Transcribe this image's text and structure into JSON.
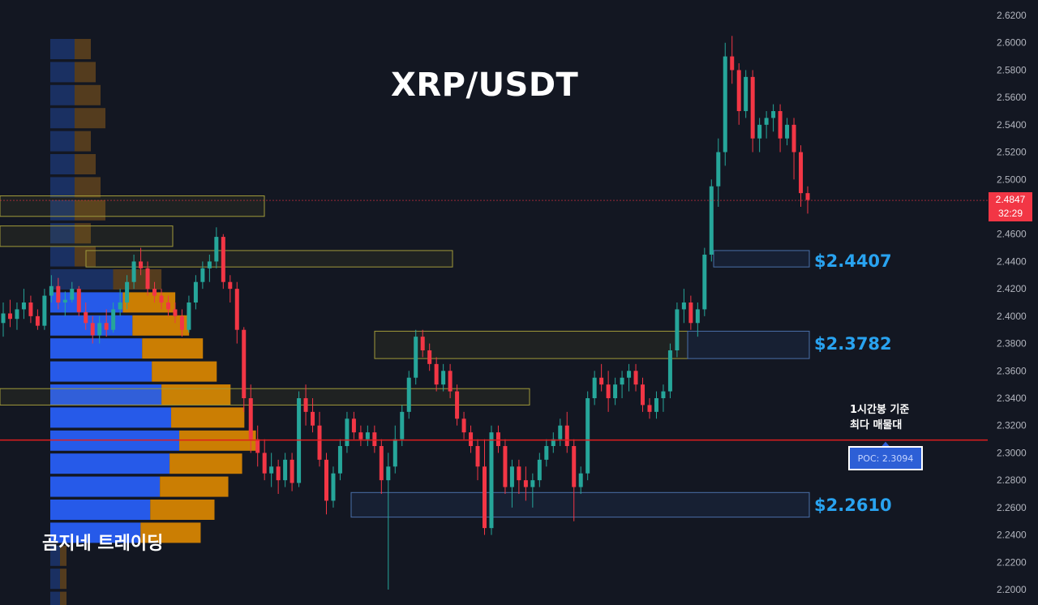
{
  "title": "XRP/USDT",
  "brand": "곰지네 트레이딩",
  "note": {
    "line1": "1시간봉 기준",
    "line2": "최다 매물대"
  },
  "poc_label": "POC: 2.3094",
  "current_price": {
    "value": "2.4847",
    "countdown": "32:29"
  },
  "levels": [
    {
      "name": "resistance-1",
      "price": 2.4407,
      "label": "$2.4407"
    },
    {
      "name": "resistance-2",
      "price": 2.3782,
      "label": "$2.3782"
    },
    {
      "name": "support-1",
      "price": 2.261,
      "label": "$2.2610"
    }
  ],
  "colors": {
    "up": "#26a69a",
    "down": "#f23645",
    "poc_line": "#e01e1e",
    "level_text": "#29a3f0"
  },
  "chart_data": {
    "type": "candlestick",
    "title": "XRP/USDT",
    "yaxis": {
      "min": 2.2,
      "max": 2.62,
      "ticks": [
        "2.2000",
        "2.2200",
        "2.2400",
        "2.2600",
        "2.2800",
        "2.3000",
        "2.3200",
        "2.3400",
        "2.3600",
        "2.3800",
        "2.4000",
        "2.4200",
        "2.4400",
        "2.4600",
        "2.4800",
        "2.5000",
        "2.5200",
        "2.5400",
        "2.5600",
        "2.5800",
        "2.6000",
        "2.6200"
      ]
    },
    "poc": 2.3094,
    "candles": [
      [
        2.395,
        2.41,
        2.385,
        2.402
      ],
      [
        2.402,
        2.412,
        2.392,
        2.398
      ],
      [
        2.398,
        2.41,
        2.39,
        2.405
      ],
      [
        2.405,
        2.42,
        2.398,
        2.41
      ],
      [
        2.41,
        2.415,
        2.395,
        2.4
      ],
      [
        2.4,
        2.405,
        2.39,
        2.393
      ],
      [
        2.393,
        2.42,
        2.39,
        2.415
      ],
      [
        2.415,
        2.43,
        2.41,
        2.422
      ],
      [
        2.422,
        2.428,
        2.405,
        2.41
      ],
      [
        2.41,
        2.418,
        2.4,
        2.412
      ],
      [
        2.412,
        2.425,
        2.41,
        2.42
      ],
      [
        2.42,
        2.422,
        2.4,
        2.403
      ],
      [
        2.403,
        2.41,
        2.39,
        2.395
      ],
      [
        2.395,
        2.4,
        2.38,
        2.386
      ],
      [
        2.386,
        2.4,
        2.38,
        2.395
      ],
      [
        2.395,
        2.405,
        2.385,
        2.39
      ],
      [
        2.39,
        2.41,
        2.388,
        2.405
      ],
      [
        2.405,
        2.42,
        2.4,
        2.41
      ],
      [
        2.41,
        2.43,
        2.405,
        2.425
      ],
      [
        2.425,
        2.445,
        2.42,
        2.44
      ],
      [
        2.44,
        2.45,
        2.43,
        2.435
      ],
      [
        2.435,
        2.44,
        2.415,
        2.42
      ],
      [
        2.42,
        2.425,
        2.41,
        2.415
      ],
      [
        2.415,
        2.42,
        2.405,
        2.41
      ],
      [
        2.41,
        2.415,
        2.4,
        2.405
      ],
      [
        2.405,
        2.41,
        2.395,
        2.4
      ],
      [
        2.4,
        2.405,
        2.385,
        2.39
      ],
      [
        2.39,
        2.415,
        2.388,
        2.41
      ],
      [
        2.41,
        2.43,
        2.405,
        2.425
      ],
      [
        2.425,
        2.44,
        2.42,
        2.435
      ],
      [
        2.435,
        2.445,
        2.425,
        2.44
      ],
      [
        2.44,
        2.465,
        2.435,
        2.458
      ],
      [
        2.458,
        2.46,
        2.42,
        2.425
      ],
      [
        2.425,
        2.43,
        2.41,
        2.42
      ],
      [
        2.42,
        2.425,
        2.38,
        2.39
      ],
      [
        2.39,
        2.392,
        2.33,
        2.34
      ],
      [
        2.34,
        2.35,
        2.3,
        2.31
      ],
      [
        2.31,
        2.32,
        2.29,
        2.3
      ],
      [
        2.3,
        2.31,
        2.28,
        2.285
      ],
      [
        2.285,
        2.3,
        2.275,
        2.29
      ],
      [
        2.29,
        2.295,
        2.27,
        2.28
      ],
      [
        2.28,
        2.3,
        2.275,
        2.295
      ],
      [
        2.295,
        2.3,
        2.272,
        2.278
      ],
      [
        2.278,
        2.345,
        2.275,
        2.34
      ],
      [
        2.34,
        2.35,
        2.32,
        2.33
      ],
      [
        2.33,
        2.34,
        2.315,
        2.32
      ],
      [
        2.32,
        2.33,
        2.29,
        2.295
      ],
      [
        2.295,
        2.3,
        2.255,
        2.265
      ],
      [
        2.265,
        2.29,
        2.26,
        2.285
      ],
      [
        2.285,
        2.31,
        2.28,
        2.305
      ],
      [
        2.305,
        2.33,
        2.3,
        2.325
      ],
      [
        2.325,
        2.33,
        2.31,
        2.315
      ],
      [
        2.315,
        2.32,
        2.305,
        2.31
      ],
      [
        2.31,
        2.32,
        2.305,
        2.315
      ],
      [
        2.315,
        2.32,
        2.3,
        2.305
      ],
      [
        2.305,
        2.31,
        2.27,
        2.28
      ],
      [
        2.28,
        2.3,
        2.2,
        2.29
      ],
      [
        2.29,
        2.32,
        2.285,
        2.31
      ],
      [
        2.31,
        2.335,
        2.305,
        2.33
      ],
      [
        2.33,
        2.36,
        2.325,
        2.355
      ],
      [
        2.355,
        2.39,
        2.35,
        2.385
      ],
      [
        2.385,
        2.39,
        2.37,
        2.375
      ],
      [
        2.375,
        2.38,
        2.36,
        2.365
      ],
      [
        2.365,
        2.37,
        2.345,
        2.35
      ],
      [
        2.35,
        2.365,
        2.345,
        2.36
      ],
      [
        2.36,
        2.365,
        2.34,
        2.345
      ],
      [
        2.345,
        2.35,
        2.32,
        2.325
      ],
      [
        2.325,
        2.33,
        2.31,
        2.315
      ],
      [
        2.315,
        2.32,
        2.3,
        2.305
      ],
      [
        2.305,
        2.31,
        2.28,
        2.29
      ],
      [
        2.29,
        2.31,
        2.24,
        2.245
      ],
      [
        2.245,
        2.32,
        2.24,
        2.315
      ],
      [
        2.315,
        2.32,
        2.3,
        2.305
      ],
      [
        2.305,
        2.31,
        2.27,
        2.275
      ],
      [
        2.275,
        2.295,
        2.26,
        2.29
      ],
      [
        2.29,
        2.295,
        2.27,
        2.28
      ],
      [
        2.28,
        2.29,
        2.265,
        2.275
      ],
      [
        2.275,
        2.285,
        2.26,
        2.28
      ],
      [
        2.28,
        2.3,
        2.275,
        2.295
      ],
      [
        2.295,
        2.31,
        2.29,
        2.305
      ],
      [
        2.305,
        2.315,
        2.3,
        2.31
      ],
      [
        2.31,
        2.325,
        2.305,
        2.32
      ],
      [
        2.32,
        2.33,
        2.3,
        2.305
      ],
      [
        2.305,
        2.31,
        2.25,
        2.275
      ],
      [
        2.275,
        2.29,
        2.27,
        2.285
      ],
      [
        2.285,
        2.345,
        2.28,
        2.34
      ],
      [
        2.34,
        2.36,
        2.335,
        2.355
      ],
      [
        2.355,
        2.365,
        2.345,
        2.35
      ],
      [
        2.35,
        2.36,
        2.33,
        2.34
      ],
      [
        2.34,
        2.355,
        2.335,
        2.35
      ],
      [
        2.35,
        2.36,
        2.34,
        2.355
      ],
      [
        2.355,
        2.365,
        2.345,
        2.36
      ],
      [
        2.36,
        2.365,
        2.345,
        2.35
      ],
      [
        2.35,
        2.355,
        2.33,
        2.335
      ],
      [
        2.335,
        2.34,
        2.325,
        2.33
      ],
      [
        2.33,
        2.345,
        2.325,
        2.34
      ],
      [
        2.34,
        2.35,
        2.33,
        2.345
      ],
      [
        2.345,
        2.38,
        2.34,
        2.375
      ],
      [
        2.375,
        2.41,
        2.37,
        2.405
      ],
      [
        2.405,
        2.42,
        2.395,
        2.41
      ],
      [
        2.41,
        2.415,
        2.39,
        2.395
      ],
      [
        2.395,
        2.41,
        2.385,
        2.405
      ],
      [
        2.405,
        2.45,
        2.4,
        2.445
      ],
      [
        2.445,
        2.5,
        2.44,
        2.495
      ],
      [
        2.495,
        2.53,
        2.48,
        2.52
      ],
      [
        2.52,
        2.6,
        2.51,
        2.59
      ],
      [
        2.59,
        2.605,
        2.57,
        2.58
      ],
      [
        2.58,
        2.585,
        2.54,
        2.55
      ],
      [
        2.55,
        2.58,
        2.545,
        2.575
      ],
      [
        2.575,
        2.58,
        2.52,
        2.53
      ],
      [
        2.53,
        2.545,
        2.52,
        2.54
      ],
      [
        2.54,
        2.55,
        2.53,
        2.545
      ],
      [
        2.545,
        2.555,
        2.535,
        2.55
      ],
      [
        2.55,
        2.555,
        2.52,
        2.53
      ],
      [
        2.53,
        2.545,
        2.525,
        2.54
      ],
      [
        2.54,
        2.545,
        2.5,
        2.52
      ],
      [
        2.52,
        2.525,
        2.48,
        2.49
      ],
      [
        2.49,
        2.495,
        2.475,
        2.485
      ]
    ]
  }
}
